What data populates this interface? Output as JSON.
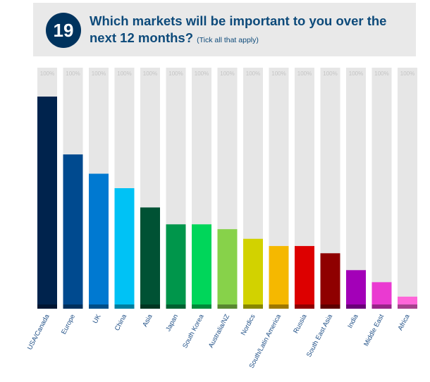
{
  "question": {
    "number": "19",
    "text": "Which markets will be important to you over the next 12 months?",
    "note": "(Tick all that apply)"
  },
  "chart_data": {
    "type": "bar",
    "categories": [
      "USA/Canada",
      "Europe",
      "UK",
      "China",
      "Asia",
      "Japan",
      "South Korea",
      "Australia/NZ",
      "Nordics",
      "South/Latin America",
      "Russia",
      "South East Asia",
      "India",
      "Middle East",
      "Africa"
    ],
    "values": [
      88,
      64,
      56,
      50,
      42,
      35,
      35,
      33,
      29,
      26,
      26,
      23,
      16,
      11,
      5
    ],
    "max_label": "100%",
    "ylim": [
      0,
      100
    ],
    "colors": [
      "#00234d",
      "#004a8f",
      "#0079d1",
      "#00c2f5",
      "#005234",
      "#00964b",
      "#00d65a",
      "#87d24a",
      "#d2d200",
      "#f5b800",
      "#dd0000",
      "#8f0000",
      "#a300b8",
      "#ea3ad1",
      "#ff66d9"
    ]
  }
}
